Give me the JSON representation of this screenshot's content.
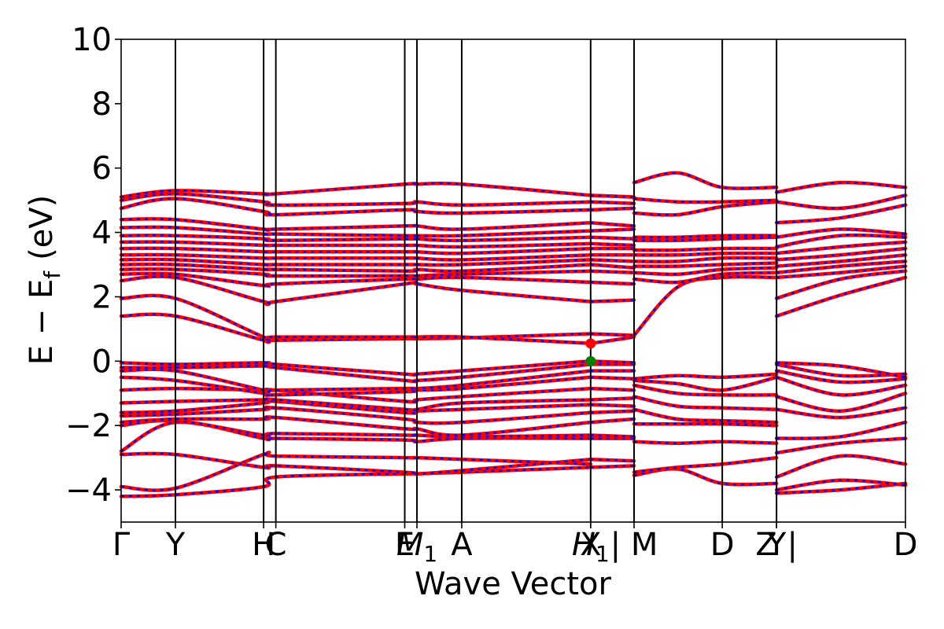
{
  "chart_data": {
    "type": "line",
    "title": "",
    "xlabel": "Wave Vector",
    "ylabel": "E − E",
    "ylabel_sub": "f",
    "ylabel_unit": "(eV)",
    "ylim": [
      -5,
      10
    ],
    "yticks": [
      10,
      8,
      6,
      4,
      2,
      0,
      -2,
      -4
    ],
    "ytick_labels": [
      "10",
      "8",
      "6",
      "4",
      "2",
      "0",
      "−2",
      "−4"
    ],
    "colors": {
      "band_main": "#ff0000",
      "band_dash": "#0000ff",
      "frame": "#000000",
      "vbm_marker": "#008000",
      "cbm_marker": "#ff0000"
    },
    "kpoints": [
      {
        "label": "Γ",
        "x": 0.0
      },
      {
        "label": "Y",
        "x": 0.4
      },
      {
        "label": "H",
        "x": 1.05
      },
      {
        "label": "C",
        "x": 1.14
      },
      {
        "label": "E",
        "x": 2.09
      },
      {
        "label": "M",
        "sub": "1",
        "x": 2.18
      },
      {
        "label": "A",
        "x": 2.51
      },
      {
        "label": "X",
        "x": 3.46
      },
      {
        "label": "H",
        "sub": "1",
        "x": 3.46
      },
      {
        "label": "| M",
        "x": 3.78
      },
      {
        "label": "D",
        "x": 4.43
      },
      {
        "label": "Z |",
        "x": 4.83
      },
      {
        "label": "Y",
        "x": 4.83
      },
      {
        "label": "D",
        "x": 5.78
      }
    ],
    "vertical_lines": [
      0.4,
      1.05,
      1.14,
      2.09,
      2.18,
      2.51,
      3.46,
      3.78,
      4.43,
      4.83
    ],
    "xlim": [
      0,
      5.78
    ],
    "segments": [
      {
        "x": [
          0,
          0.4,
          1.05,
          1.14,
          2.09,
          2.18,
          2.51,
          3.46
        ],
        "bands": [
          [
            -4.2,
            -4.15,
            -3.9,
            -3.6,
            -3.5,
            -3.5,
            -3.45,
            -3.3
          ],
          [
            -3.9,
            -3.95,
            -2.9,
            -2.95,
            -3.0,
            -3.0,
            -3.05,
            -3.2
          ],
          [
            -2.9,
            -2.9,
            -3.3,
            -3.25,
            -3.45,
            -3.5,
            -3.4,
            -3.05
          ],
          [
            -2.8,
            -1.9,
            -2.4,
            -2.4,
            -2.45,
            -2.5,
            -2.4,
            -2.4
          ],
          [
            -2.0,
            -1.85,
            -2.3,
            -2.25,
            -2.3,
            -2.3,
            -2.35,
            -2.3
          ],
          [
            -1.9,
            -1.8,
            -1.8,
            -1.75,
            -2.1,
            -2.1,
            -2.3,
            -1.9
          ],
          [
            -1.7,
            -1.65,
            -1.5,
            -1.45,
            -1.8,
            -1.9,
            -1.9,
            -1.6
          ],
          [
            -1.6,
            -1.55,
            -1.3,
            -1.25,
            -1.6,
            -1.55,
            -1.5,
            -1.35
          ],
          [
            -1.3,
            -1.25,
            -1.2,
            -1.2,
            -1.5,
            -1.5,
            -1.3,
            -1.2
          ],
          [
            -0.9,
            -0.85,
            -0.9,
            -0.9,
            -1.25,
            -1.2,
            -1.1,
            -0.85
          ],
          [
            -0.5,
            -0.6,
            -1.0,
            -1.05,
            -0.95,
            -0.9,
            -0.85,
            -0.5
          ],
          [
            -0.3,
            -0.3,
            -0.9,
            -0.9,
            -0.85,
            -0.85,
            -0.75,
            -0.3
          ],
          [
            -0.2,
            -0.2,
            -0.15,
            -0.2,
            -0.6,
            -0.6,
            -0.5,
            -0.1
          ],
          [
            -0.05,
            -0.1,
            -0.05,
            -0.1,
            -0.4,
            -0.4,
            -0.3,
            0.0
          ],
          [
            1.4,
            1.4,
            0.65,
            0.65,
            0.7,
            0.7,
            0.72,
            0.85
          ],
          [
            1.95,
            1.95,
            0.75,
            0.75,
            0.75,
            0.75,
            0.75,
            0.55
          ],
          [
            2.5,
            2.6,
            1.85,
            1.85,
            2.4,
            2.4,
            2.2,
            1.85
          ],
          [
            2.7,
            2.7,
            2.35,
            2.4,
            2.55,
            2.55,
            2.6,
            2.45
          ],
          [
            2.85,
            2.85,
            2.7,
            2.65,
            2.65,
            2.65,
            2.7,
            2.8
          ],
          [
            3.0,
            3.0,
            2.85,
            2.85,
            2.8,
            2.85,
            2.8,
            3.0
          ],
          [
            3.15,
            3.15,
            3.0,
            3.0,
            3.0,
            3.0,
            3.0,
            3.15
          ],
          [
            3.3,
            3.3,
            3.2,
            3.2,
            3.2,
            3.2,
            3.15,
            3.3
          ],
          [
            3.5,
            3.5,
            3.4,
            3.4,
            3.4,
            3.4,
            3.35,
            3.5
          ],
          [
            3.7,
            3.7,
            3.6,
            3.6,
            3.6,
            3.6,
            3.55,
            3.65
          ],
          [
            3.9,
            3.9,
            3.8,
            3.75,
            3.8,
            3.8,
            3.75,
            3.85
          ],
          [
            4.15,
            4.15,
            3.95,
            3.95,
            3.9,
            3.9,
            3.9,
            4.05
          ],
          [
            4.4,
            4.4,
            4.1,
            4.1,
            4.2,
            4.2,
            4.1,
            4.3
          ],
          [
            4.75,
            5.05,
            4.65,
            4.55,
            4.7,
            4.65,
            4.6,
            4.7
          ],
          [
            5.0,
            5.2,
            4.95,
            4.85,
            4.9,
            4.95,
            4.85,
            4.95
          ],
          [
            5.1,
            5.3,
            5.2,
            5.2,
            5.5,
            5.5,
            5.5,
            5.15
          ]
        ]
      },
      {
        "x": [
          3.46,
          3.78
        ],
        "bands": [
          [
            -3.3,
            -3.25
          ],
          [
            -3.05,
            -3.1
          ],
          [
            -2.4,
            -2.4
          ],
          [
            -2.3,
            -2.35
          ],
          [
            -1.9,
            -1.8
          ],
          [
            -1.6,
            -1.55
          ],
          [
            -1.35,
            -1.4
          ],
          [
            -1.2,
            -1.15
          ],
          [
            -0.85,
            -0.9
          ],
          [
            -0.5,
            -0.55
          ],
          [
            -0.3,
            -0.3
          ],
          [
            -0.1,
            -0.1
          ],
          [
            0.0,
            -0.05
          ],
          [
            0.55,
            0.75
          ],
          [
            0.85,
            0.8
          ],
          [
            1.85,
            1.9
          ],
          [
            2.45,
            2.4
          ],
          [
            2.8,
            2.75
          ],
          [
            3.0,
            2.9
          ],
          [
            3.15,
            3.1
          ],
          [
            3.3,
            3.3
          ],
          [
            3.5,
            3.5
          ],
          [
            3.65,
            3.6
          ],
          [
            3.85,
            3.8
          ],
          [
            4.05,
            4.1
          ],
          [
            4.3,
            4.2
          ],
          [
            4.7,
            4.75
          ],
          [
            4.95,
            4.9
          ],
          [
            5.15,
            5.1
          ],
          [
            5.15,
            5.1
          ]
        ]
      },
      {
        "x": [
          3.78,
          4.1,
          4.43,
          4.83
        ],
        "bands": [
          [
            -3.55,
            -3.35,
            -3.8,
            -3.8
          ],
          [
            -3.45,
            -3.3,
            -3.2,
            -3.0
          ],
          [
            -2.5,
            -2.55,
            -2.5,
            -2.55
          ],
          [
            -1.95,
            -1.95,
            -1.95,
            -2.0
          ],
          [
            -1.5,
            -1.8,
            -1.85,
            -1.9
          ],
          [
            -1.1,
            -1.4,
            -1.45,
            -1.5
          ],
          [
            -0.75,
            -1.0,
            -1.05,
            -1.05
          ],
          [
            -0.6,
            -0.7,
            -0.9,
            -0.5
          ],
          [
            -0.55,
            -0.45,
            -0.5,
            -0.4
          ],
          [
            0.8,
            2.3,
            2.6,
            2.6
          ],
          [
            2.55,
            2.45,
            2.7,
            2.75
          ],
          [
            2.75,
            2.7,
            2.85,
            2.9
          ],
          [
            2.95,
            2.95,
            3.0,
            3.05
          ],
          [
            3.1,
            3.1,
            3.2,
            3.2
          ],
          [
            3.3,
            3.3,
            3.35,
            3.35
          ],
          [
            3.45,
            3.45,
            3.5,
            3.5
          ],
          [
            3.75,
            3.75,
            3.8,
            3.85
          ],
          [
            3.85,
            3.85,
            3.9,
            3.9
          ],
          [
            4.6,
            4.55,
            4.8,
            4.95
          ],
          [
            5.05,
            4.95,
            4.95,
            5.0
          ],
          [
            5.55,
            5.85,
            5.4,
            5.4
          ]
        ]
      },
      {
        "x": [
          4.83,
          5.3,
          5.78
        ],
        "bands": [
          [
            -4.1,
            -4.0,
            -3.8
          ],
          [
            -4.0,
            -3.7,
            -3.85
          ],
          [
            -3.6,
            -2.95,
            -3.2
          ],
          [
            -2.85,
            -2.55,
            -2.4
          ],
          [
            -2.4,
            -2.35,
            -1.9
          ],
          [
            -1.5,
            -1.75,
            -1.45
          ],
          [
            -1.1,
            -1.55,
            -1.0
          ],
          [
            -0.5,
            -1.05,
            -0.75
          ],
          [
            -0.3,
            -0.65,
            -0.55
          ],
          [
            -0.1,
            -0.45,
            -0.4
          ],
          [
            -0.05,
            -0.15,
            -0.5
          ],
          [
            1.4,
            2.05,
            2.6
          ],
          [
            1.95,
            2.55,
            2.8
          ],
          [
            2.6,
            2.75,
            2.95
          ],
          [
            2.75,
            2.95,
            3.1
          ],
          [
            2.95,
            3.1,
            3.3
          ],
          [
            3.15,
            3.3,
            3.5
          ],
          [
            3.35,
            3.55,
            3.7
          ],
          [
            3.55,
            3.9,
            3.85
          ],
          [
            3.85,
            4.1,
            3.95
          ],
          [
            4.3,
            4.45,
            4.85
          ],
          [
            4.95,
            4.75,
            5.15
          ],
          [
            5.25,
            5.55,
            5.4
          ]
        ]
      }
    ],
    "markers": [
      {
        "name": "cbm",
        "x": 3.46,
        "y": 0.55,
        "color": "#ff0000"
      },
      {
        "name": "vbm",
        "x": 3.46,
        "y": 0.0,
        "color": "#008000"
      }
    ]
  }
}
